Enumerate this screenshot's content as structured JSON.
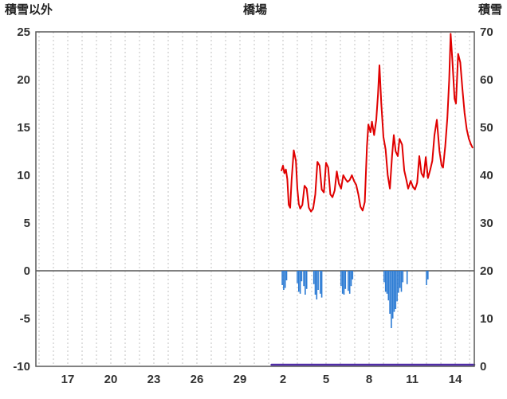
{
  "header": {
    "left_label": "積雪以外",
    "title": "橋場",
    "right_label": "積雪"
  },
  "chart_data": {
    "type": "line",
    "title": "橋場",
    "left_axis": {
      "label": "積雪以外",
      "min": -10,
      "max": 25,
      "ticks": [
        25,
        20,
        15,
        10,
        5,
        0,
        -5,
        -10
      ]
    },
    "right_axis": {
      "label": "積雪",
      "min": 0,
      "max": 70,
      "ticks": [
        70,
        60,
        50,
        40,
        30,
        20,
        10,
        0
      ]
    },
    "x_axis": {
      "min": 14.78,
      "max": 45.33,
      "grid_step_days": 1,
      "tick_positions": [
        17,
        20,
        23,
        26,
        29,
        32,
        35,
        38,
        41,
        44
      ],
      "tick_labels": [
        "17",
        "20",
        "23",
        "26",
        "29",
        "2",
        "5",
        "8",
        "11",
        "14"
      ]
    },
    "grid": "vertical-dashed",
    "legend": "none",
    "colors": {
      "red_line": "#e00000",
      "blue_bar": "#2b7bd4",
      "purple_line": "#512da8",
      "grid": "#c0c0c0",
      "zero_line": "#808080",
      "border": "#595959",
      "text": "#333333",
      "background": "#ffffff"
    },
    "series": [
      {
        "name": "red-line",
        "type": "line",
        "axis": "left",
        "points": [
          [
            31.9,
            10.5
          ],
          [
            32.0,
            11.0
          ],
          [
            32.1,
            10.2
          ],
          [
            32.2,
            10.6
          ],
          [
            32.3,
            9.6
          ],
          [
            32.4,
            6.9
          ],
          [
            32.5,
            6.6
          ],
          [
            32.6,
            9.5
          ],
          [
            32.75,
            12.6
          ],
          [
            32.9,
            11.5
          ],
          [
            33.0,
            8.6
          ],
          [
            33.1,
            7.0
          ],
          [
            33.2,
            6.5
          ],
          [
            33.35,
            6.9
          ],
          [
            33.5,
            8.9
          ],
          [
            33.65,
            8.6
          ],
          [
            33.8,
            6.6
          ],
          [
            33.95,
            6.2
          ],
          [
            34.1,
            6.5
          ],
          [
            34.25,
            8.0
          ],
          [
            34.4,
            11.4
          ],
          [
            34.55,
            11.0
          ],
          [
            34.7,
            8.5
          ],
          [
            34.85,
            8.2
          ],
          [
            35.0,
            11.3
          ],
          [
            35.15,
            10.8
          ],
          [
            35.3,
            8.0
          ],
          [
            35.45,
            7.7
          ],
          [
            35.6,
            8.4
          ],
          [
            35.75,
            10.4
          ],
          [
            35.9,
            9.1
          ],
          [
            36.05,
            8.6
          ],
          [
            36.2,
            10.0
          ],
          [
            36.35,
            9.6
          ],
          [
            36.5,
            9.3
          ],
          [
            36.65,
            9.5
          ],
          [
            36.8,
            10.0
          ],
          [
            36.95,
            9.4
          ],
          [
            37.1,
            9.0
          ],
          [
            37.25,
            8.0
          ],
          [
            37.4,
            6.7
          ],
          [
            37.55,
            6.3
          ],
          [
            37.7,
            7.2
          ],
          [
            37.85,
            13.0
          ],
          [
            37.95,
            15.3
          ],
          [
            38.1,
            14.5
          ],
          [
            38.2,
            15.6
          ],
          [
            38.35,
            14.2
          ],
          [
            38.5,
            15.8
          ],
          [
            38.62,
            18.5
          ],
          [
            38.72,
            21.5
          ],
          [
            38.85,
            17.5
          ],
          [
            39.0,
            14.0
          ],
          [
            39.15,
            12.7
          ],
          [
            39.3,
            10.0
          ],
          [
            39.45,
            8.6
          ],
          [
            39.6,
            12.0
          ],
          [
            39.72,
            14.2
          ],
          [
            39.85,
            12.5
          ],
          [
            40.0,
            12.0
          ],
          [
            40.12,
            13.8
          ],
          [
            40.3,
            13.2
          ],
          [
            40.45,
            10.5
          ],
          [
            40.6,
            9.5
          ],
          [
            40.72,
            8.6
          ],
          [
            40.9,
            9.4
          ],
          [
            41.05,
            8.8
          ],
          [
            41.2,
            8.5
          ],
          [
            41.35,
            9.2
          ],
          [
            41.5,
            12.0
          ],
          [
            41.65,
            10.2
          ],
          [
            41.8,
            9.8
          ],
          [
            41.95,
            11.9
          ],
          [
            42.1,
            9.7
          ],
          [
            42.25,
            10.5
          ],
          [
            42.4,
            11.5
          ],
          [
            42.55,
            14.2
          ],
          [
            42.72,
            15.8
          ],
          [
            42.9,
            12.5
          ],
          [
            43.05,
            11.0
          ],
          [
            43.15,
            10.8
          ],
          [
            43.3,
            13.0
          ],
          [
            43.45,
            16.0
          ],
          [
            43.58,
            20.0
          ],
          [
            43.68,
            24.8
          ],
          [
            43.8,
            22.0
          ],
          [
            43.95,
            18.0
          ],
          [
            44.05,
            17.5
          ],
          [
            44.2,
            22.7
          ],
          [
            44.35,
            21.8
          ],
          [
            44.5,
            19.0
          ],
          [
            44.65,
            16.5
          ],
          [
            44.8,
            14.8
          ],
          [
            44.95,
            13.8
          ],
          [
            45.1,
            13.2
          ],
          [
            45.2,
            12.9
          ]
        ]
      },
      {
        "name": "blue-bars",
        "type": "bar",
        "axis": "left",
        "bar_width_days": 0.09,
        "points": [
          [
            31.95,
            -1.5
          ],
          [
            32.05,
            -2.0
          ],
          [
            32.15,
            -1.8
          ],
          [
            32.25,
            -1.0
          ],
          [
            33.0,
            -1.3
          ],
          [
            33.1,
            -2.2
          ],
          [
            33.2,
            -2.4
          ],
          [
            33.3,
            -1.1
          ],
          [
            33.45,
            -1.6
          ],
          [
            33.55,
            -2.5
          ],
          [
            33.65,
            -1.9
          ],
          [
            34.15,
            -1.4
          ],
          [
            34.25,
            -2.5
          ],
          [
            34.35,
            -3.0
          ],
          [
            34.45,
            -2.0
          ],
          [
            34.6,
            -2.4
          ],
          [
            34.7,
            -2.8
          ],
          [
            36.05,
            -1.6
          ],
          [
            36.15,
            -2.4
          ],
          [
            36.25,
            -2.5
          ],
          [
            36.35,
            -1.9
          ],
          [
            36.55,
            -2.1
          ],
          [
            36.65,
            -2.4
          ],
          [
            36.75,
            -1.6
          ],
          [
            36.85,
            -0.9
          ],
          [
            39.05,
            -1.2
          ],
          [
            39.15,
            -2.2
          ],
          [
            39.25,
            -2.4
          ],
          [
            39.35,
            -3.1
          ],
          [
            39.45,
            -4.5
          ],
          [
            39.55,
            -6.0
          ],
          [
            39.65,
            -5.0
          ],
          [
            39.75,
            -4.3
          ],
          [
            39.85,
            -4.0
          ],
          [
            39.95,
            -3.2
          ],
          [
            40.05,
            -2.3
          ],
          [
            40.15,
            -1.8
          ],
          [
            40.25,
            -2.2
          ],
          [
            40.35,
            -1.2
          ],
          [
            40.65,
            -1.4
          ],
          [
            42.0,
            -1.5
          ],
          [
            42.1,
            -0.9
          ]
        ]
      },
      {
        "name": "purple-line",
        "type": "line",
        "axis": "right",
        "points": [
          [
            31.2,
            0
          ],
          [
            45.33,
            0
          ]
        ]
      }
    ]
  }
}
